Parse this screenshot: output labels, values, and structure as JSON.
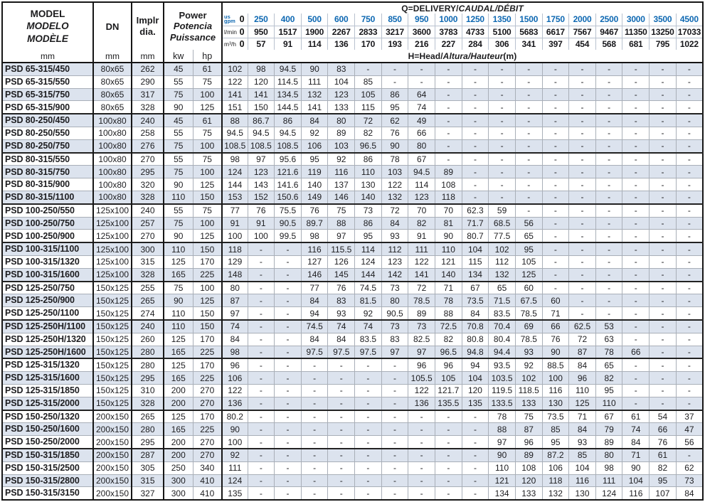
{
  "palette": {
    "accent_blue": "#0e68b2",
    "row_shade": "#dce3ee",
    "grid_gray": "#a9afb8",
    "grid_dark": "#161616"
  },
  "table": {
    "header": {
      "model_l1": "MODEL",
      "model_l2": "MODELO",
      "model_l3": "MODÈLE",
      "dn": "DN",
      "implr_l1": "Implr",
      "implr_l2": "dia.",
      "power_l1": "Power",
      "power_l2": "Potencia",
      "power_l3": "Puissance",
      "unit_mm_model": "mm",
      "unit_mm_dn": "mm",
      "unit_mm_dia": "mm",
      "unit_kw": "kw",
      "unit_hp": "hp",
      "q_title_a": "Q=DELIVERY/",
      "q_title_b": "CAUDAL/DÉBIT",
      "h_title_a": "H=Head/",
      "h_title_b": "Altura/Hauteur",
      "h_title_c": "(m)",
      "flow_rows": [
        {
          "name": "us-gpm",
          "label_lines": [
            "us",
            "gpm"
          ],
          "style": "blue",
          "values": [
            "0",
            "250",
            "400",
            "500",
            "600",
            "750",
            "850",
            "950",
            "1000",
            "1250",
            "1350",
            "1500",
            "1750",
            "2000",
            "2500",
            "3000",
            "3500",
            "4500"
          ]
        },
        {
          "name": "l-min",
          "label_lines": [
            "l/min"
          ],
          "style": "dark",
          "values": [
            "0",
            "950",
            "1517",
            "1900",
            "2267",
            "2833",
            "3217",
            "3600",
            "3783",
            "4733",
            "5100",
            "5683",
            "6617",
            "7567",
            "9467",
            "11350",
            "13250",
            "17033"
          ]
        },
        {
          "name": "m3-h",
          "label_lines": [
            "m³/h"
          ],
          "style": "dark",
          "values": [
            "0",
            "57",
            "91",
            "114",
            "136",
            "170",
            "193",
            "216",
            "227",
            "284",
            "306",
            "341",
            "397",
            "454",
            "568",
            "681",
            "795",
            "1022"
          ]
        }
      ]
    },
    "rows": [
      {
        "model": "PSD 65-315/450",
        "dn": "80x65",
        "dia": "262",
        "kw": "45",
        "hp": "61",
        "grp": false,
        "h": [
          "102",
          "98",
          "94.5",
          "90",
          "83",
          "-",
          "-",
          "-",
          "-",
          "-",
          "-",
          "-",
          "-",
          "-",
          "-",
          "-",
          "-",
          "-"
        ]
      },
      {
        "model": "PSD 65-315/550",
        "dn": "80x65",
        "dia": "290",
        "kw": "55",
        "hp": "75",
        "grp": false,
        "h": [
          "122",
          "120",
          "114.5",
          "111",
          "104",
          "85",
          "-",
          "-",
          "-",
          "-",
          "-",
          "-",
          "-",
          "-",
          "-",
          "-",
          "-",
          "-"
        ]
      },
      {
        "model": "PSD 65-315/750",
        "dn": "80x65",
        "dia": "317",
        "kw": "75",
        "hp": "100",
        "grp": false,
        "h": [
          "141",
          "141",
          "134.5",
          "132",
          "123",
          "105",
          "86",
          "64",
          "-",
          "-",
          "-",
          "-",
          "-",
          "-",
          "-",
          "-",
          "-",
          "-"
        ]
      },
      {
        "model": "PSD 65-315/900",
        "dn": "80x65",
        "dia": "328",
        "kw": "90",
        "hp": "125",
        "grp": false,
        "h": [
          "151",
          "150",
          "144.5",
          "141",
          "133",
          "115",
          "95",
          "74",
          "-",
          "-",
          "-",
          "-",
          "-",
          "-",
          "-",
          "-",
          "-",
          "-"
        ]
      },
      {
        "model": "PSD 80-250/450",
        "dn": "100x80",
        "dia": "240",
        "kw": "45",
        "hp": "61",
        "grp": true,
        "h": [
          "88",
          "86.7",
          "86",
          "84",
          "80",
          "72",
          "62",
          "49",
          "-",
          "-",
          "-",
          "-",
          "-",
          "-",
          "-",
          "-",
          "-",
          "-"
        ]
      },
      {
        "model": "PSD 80-250/550",
        "dn": "100x80",
        "dia": "258",
        "kw": "55",
        "hp": "75",
        "grp": false,
        "h": [
          "94.5",
          "94.5",
          "94.5",
          "92",
          "89",
          "82",
          "76",
          "66",
          "-",
          "-",
          "-",
          "-",
          "-",
          "-",
          "-",
          "-",
          "-",
          "-"
        ]
      },
      {
        "model": "PSD 80-250/750",
        "dn": "100x80",
        "dia": "276",
        "kw": "75",
        "hp": "100",
        "grp": false,
        "h": [
          "108.5",
          "108.5",
          "108.5",
          "106",
          "103",
          "96.5",
          "90",
          "80",
          "-",
          "-",
          "-",
          "-",
          "-",
          "-",
          "-",
          "-",
          "-",
          "-"
        ]
      },
      {
        "model": "PSD 80-315/550",
        "dn": "100x80",
        "dia": "270",
        "kw": "55",
        "hp": "75",
        "grp": true,
        "h": [
          "98",
          "97",
          "95.6",
          "95",
          "92",
          "86",
          "78",
          "67",
          "-",
          "-",
          "-",
          "-",
          "-",
          "-",
          "-",
          "-",
          "-",
          "-"
        ]
      },
      {
        "model": "PSD 80-315/750",
        "dn": "100x80",
        "dia": "295",
        "kw": "75",
        "hp": "100",
        "grp": false,
        "h": [
          "124",
          "123",
          "121.6",
          "119",
          "116",
          "110",
          "103",
          "94.5",
          "89",
          "-",
          "-",
          "-",
          "-",
          "-",
          "-",
          "-",
          "-",
          "-"
        ]
      },
      {
        "model": "PSD 80-315/900",
        "dn": "100x80",
        "dia": "320",
        "kw": "90",
        "hp": "125",
        "grp": false,
        "h": [
          "144",
          "143",
          "141.6",
          "140",
          "137",
          "130",
          "122",
          "114",
          "108",
          "-",
          "-",
          "-",
          "-",
          "-",
          "-",
          "-",
          "-",
          "-"
        ]
      },
      {
        "model": "PSD 80-315/1100",
        "dn": "100x80",
        "dia": "328",
        "kw": "110",
        "hp": "150",
        "grp": false,
        "h": [
          "153",
          "152",
          "150.6",
          "149",
          "146",
          "140",
          "132",
          "123",
          "118",
          "-",
          "-",
          "-",
          "-",
          "-",
          "-",
          "-",
          "-",
          "-"
        ]
      },
      {
        "model": "PSD 100-250/550",
        "dn": "125x100",
        "dia": "240",
        "kw": "55",
        "hp": "75",
        "grp": true,
        "h": [
          "77",
          "76",
          "75.5",
          "76",
          "75",
          "73",
          "72",
          "70",
          "70",
          "62.3",
          "59",
          "-",
          "-",
          "-",
          "-",
          "-",
          "-",
          "-"
        ]
      },
      {
        "model": "PSD 100-250/750",
        "dn": "125x100",
        "dia": "257",
        "kw": "75",
        "hp": "100",
        "grp": false,
        "h": [
          "91",
          "91",
          "90.5",
          "89.7",
          "88",
          "86",
          "84",
          "82",
          "81",
          "71.7",
          "68.5",
          "56",
          "-",
          "-",
          "-",
          "-",
          "-",
          "-"
        ]
      },
      {
        "model": "PSD 100-250/900",
        "dn": "125x100",
        "dia": "270",
        "kw": "90",
        "hp": "125",
        "grp": false,
        "h": [
          "100",
          "100",
          "99.5",
          "98",
          "97",
          "95",
          "93",
          "91",
          "90",
          "80.7",
          "77.5",
          "65",
          "-",
          "-",
          "-",
          "-",
          "-",
          "-"
        ]
      },
      {
        "model": "PSD 100-315/1100",
        "dn": "125x100",
        "dia": "300",
        "kw": "110",
        "hp": "150",
        "grp": true,
        "h": [
          "118",
          "-",
          "-",
          "116",
          "115.5",
          "114",
          "112",
          "111",
          "110",
          "104",
          "102",
          "95",
          "-",
          "-",
          "-",
          "-",
          "-",
          "-"
        ]
      },
      {
        "model": "PSD 100-315/1320",
        "dn": "125x100",
        "dia": "315",
        "kw": "125",
        "hp": "170",
        "grp": false,
        "h": [
          "129",
          "-",
          "-",
          "127",
          "126",
          "124",
          "123",
          "122",
          "121",
          "115",
          "112",
          "105",
          "-",
          "-",
          "-",
          "-",
          "-",
          "-"
        ]
      },
      {
        "model": "PSD 100-315/1600",
        "dn": "125x100",
        "dia": "328",
        "kw": "165",
        "hp": "225",
        "grp": false,
        "h": [
          "148",
          "-",
          "-",
          "146",
          "145",
          "144",
          "142",
          "141",
          "140",
          "134",
          "132",
          "125",
          "-",
          "-",
          "-",
          "-",
          "-",
          "-"
        ]
      },
      {
        "model": "PSD 125-250/750",
        "dn": "150x125",
        "dia": "255",
        "kw": "75",
        "hp": "100",
        "grp": true,
        "h": [
          "80",
          "-",
          "-",
          "77",
          "76",
          "74.5",
          "73",
          "72",
          "71",
          "67",
          "65",
          "60",
          "-",
          "-",
          "-",
          "-",
          "-",
          "-"
        ]
      },
      {
        "model": "PSD 125-250/900",
        "dn": "150x125",
        "dia": "265",
        "kw": "90",
        "hp": "125",
        "grp": false,
        "h": [
          "87",
          "-",
          "-",
          "84",
          "83",
          "81.5",
          "80",
          "78.5",
          "78",
          "73.5",
          "71.5",
          "67.5",
          "60",
          "-",
          "-",
          "-",
          "-",
          "-"
        ]
      },
      {
        "model": "PSD 125-250/1100",
        "dn": "150x125",
        "dia": "274",
        "kw": "110",
        "hp": "150",
        "grp": false,
        "h": [
          "97",
          "-",
          "-",
          "94",
          "93",
          "92",
          "90.5",
          "89",
          "88",
          "84",
          "83.5",
          "78.5",
          "71",
          "-",
          "-",
          "-",
          "-",
          "-"
        ]
      },
      {
        "model": "PSD 125-250H/1100",
        "dn": "150x125",
        "dia": "240",
        "kw": "110",
        "hp": "150",
        "grp": true,
        "h": [
          "74",
          "-",
          "-",
          "74.5",
          "74",
          "74",
          "73",
          "73",
          "72.5",
          "70.8",
          "70.4",
          "69",
          "66",
          "62.5",
          "53",
          "-",
          "-",
          "-"
        ]
      },
      {
        "model": "PSD 125-250H/1320",
        "dn": "150x125",
        "dia": "260",
        "kw": "125",
        "hp": "170",
        "grp": false,
        "h": [
          "84",
          "-",
          "-",
          "84",
          "84",
          "83.5",
          "83",
          "82.5",
          "82",
          "80.8",
          "80.4",
          "78.5",
          "76",
          "72",
          "63",
          "-",
          "-",
          "-"
        ]
      },
      {
        "model": "PSD 125-250H/1600",
        "dn": "150x125",
        "dia": "280",
        "kw": "165",
        "hp": "225",
        "grp": false,
        "h": [
          "98",
          "-",
          "-",
          "97.5",
          "97.5",
          "97.5",
          "97",
          "97",
          "96.5",
          "94.8",
          "94.4",
          "93",
          "90",
          "87",
          "78",
          "66",
          "-",
          "-"
        ]
      },
      {
        "model": "PSD 125-315/1320",
        "dn": "150x125",
        "dia": "280",
        "kw": "125",
        "hp": "170",
        "grp": true,
        "h": [
          "96",
          "-",
          "-",
          "-",
          "-",
          "-",
          "-",
          "96",
          "96",
          "94",
          "93.5",
          "92",
          "88.5",
          "84",
          "65",
          "-",
          "-",
          "-"
        ]
      },
      {
        "model": "PSD 125-315/1600",
        "dn": "150x125",
        "dia": "295",
        "kw": "165",
        "hp": "225",
        "grp": false,
        "h": [
          "106",
          "-",
          "-",
          "-",
          "-",
          "-",
          "-",
          "105.5",
          "105",
          "104",
          "103.5",
          "102",
          "100",
          "96",
          "82",
          "-",
          "-",
          "-"
        ]
      },
      {
        "model": "PSD 125-315/1850",
        "dn": "150x125",
        "dia": "310",
        "kw": "200",
        "hp": "270",
        "grp": false,
        "h": [
          "122",
          "-",
          "-",
          "-",
          "-",
          "-",
          "-",
          "122",
          "121.7",
          "120",
          "119.5",
          "118.5",
          "116",
          "110",
          "95",
          "-",
          "-",
          "-"
        ]
      },
      {
        "model": "PSD 125-315/2000",
        "dn": "150x125",
        "dia": "328",
        "kw": "200",
        "hp": "270",
        "grp": false,
        "h": [
          "136",
          "-",
          "-",
          "-",
          "-",
          "-",
          "-",
          "136",
          "135.5",
          "135",
          "133.5",
          "133",
          "130",
          "125",
          "110",
          "-",
          "-",
          "-"
        ]
      },
      {
        "model": "PSD 150-250/1320",
        "dn": "200x150",
        "dia": "265",
        "kw": "125",
        "hp": "170",
        "grp": true,
        "h": [
          "80.2",
          "-",
          "-",
          "-",
          "-",
          "-",
          "-",
          "-",
          "-",
          "-",
          "78",
          "75",
          "73.5",
          "71",
          "67",
          "61",
          "54",
          "37"
        ]
      },
      {
        "model": "PSD 150-250/1600",
        "dn": "200x150",
        "dia": "280",
        "kw": "165",
        "hp": "225",
        "grp": false,
        "h": [
          "90",
          "-",
          "-",
          "-",
          "-",
          "-",
          "-",
          "-",
          "-",
          "-",
          "88",
          "87",
          "85",
          "84",
          "79",
          "74",
          "66",
          "47"
        ]
      },
      {
        "model": "PSD 150-250/2000",
        "dn": "200x150",
        "dia": "295",
        "kw": "200",
        "hp": "270",
        "grp": false,
        "h": [
          "100",
          "-",
          "-",
          "-",
          "-",
          "-",
          "-",
          "-",
          "-",
          "-",
          "97",
          "96",
          "95",
          "93",
          "89",
          "84",
          "76",
          "56"
        ]
      },
      {
        "model": "PSD 150-315/1850",
        "dn": "200x150",
        "dia": "287",
        "kw": "200",
        "hp": "270",
        "grp": true,
        "h": [
          "92",
          "-",
          "-",
          "-",
          "-",
          "-",
          "-",
          "-",
          "-",
          "-",
          "90",
          "89",
          "87.2",
          "85",
          "80",
          "71",
          "61",
          "-"
        ]
      },
      {
        "model": "PSD 150-315/2500",
        "dn": "200x150",
        "dia": "305",
        "kw": "250",
        "hp": "340",
        "grp": false,
        "h": [
          "111",
          "-",
          "-",
          "-",
          "-",
          "-",
          "-",
          "-",
          "-",
          "-",
          "110",
          "108",
          "106",
          "104",
          "98",
          "90",
          "82",
          "62"
        ]
      },
      {
        "model": "PSD 150-315/2800",
        "dn": "200x150",
        "dia": "315",
        "kw": "300",
        "hp": "410",
        "grp": false,
        "h": [
          "124",
          "-",
          "-",
          "-",
          "-",
          "-",
          "-",
          "-",
          "-",
          "-",
          "121",
          "120",
          "118",
          "116",
          "111",
          "104",
          "95",
          "73"
        ]
      },
      {
        "model": "PSD 150-315/3150",
        "dn": "200x150",
        "dia": "327",
        "kw": "300",
        "hp": "410",
        "grp": false,
        "h": [
          "135",
          "-",
          "-",
          "-",
          "-",
          "-",
          "-",
          "-",
          "-",
          "-",
          "134",
          "133",
          "132",
          "130",
          "124",
          "116",
          "107",
          "84"
        ]
      }
    ]
  }
}
